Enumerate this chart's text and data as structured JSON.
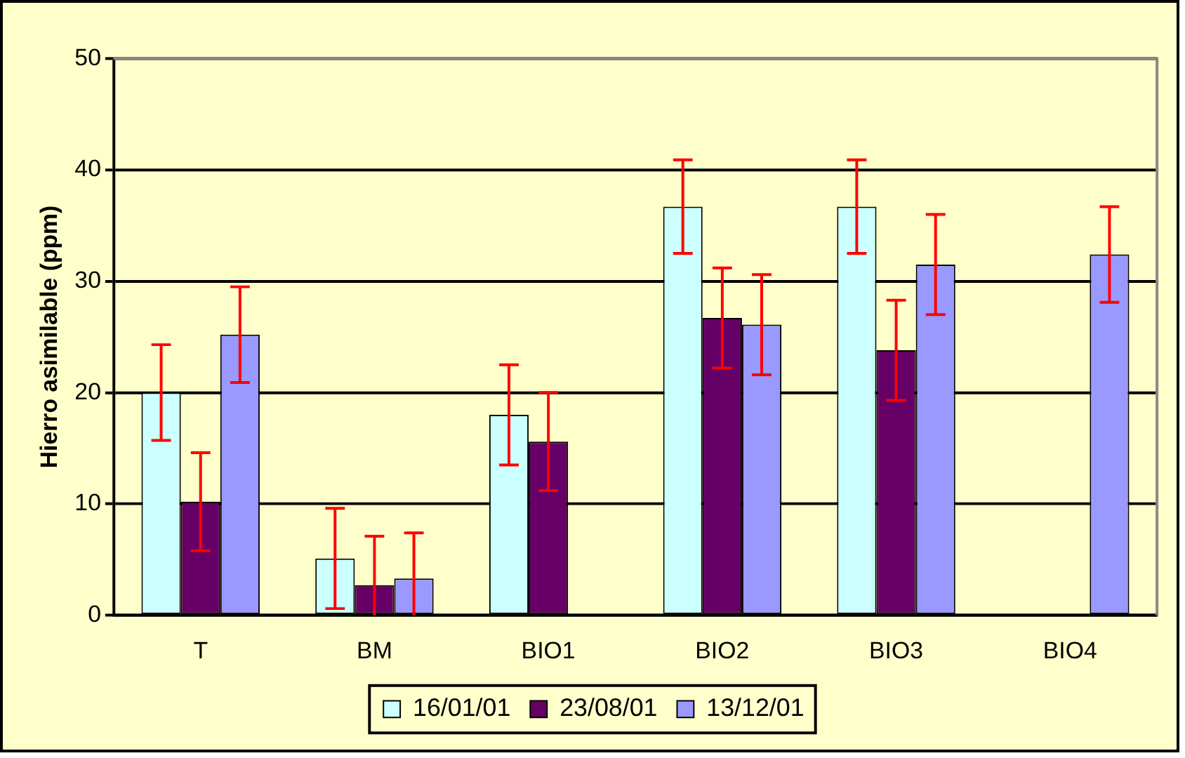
{
  "chart_data": {
    "type": "bar",
    "ylabel": "Hierro asimilable (ppm)",
    "categories": [
      "T",
      "BM",
      "BIO1",
      "BIO2",
      "BIO3",
      "BIO4"
    ],
    "series": [
      {
        "name": "16/01/01",
        "color": "#ccffff",
        "values": [
          20,
          5.1,
          18,
          36.7,
          36.7,
          null
        ],
        "errors": [
          4.3,
          4.5,
          4.5,
          4.2,
          4.2,
          null
        ]
      },
      {
        "name": "23/08/01",
        "color": "#660066",
        "values": [
          10.2,
          2.7,
          15.6,
          26.7,
          23.8,
          null
        ],
        "errors": [
          4.4,
          [
            0,
            7.1
          ],
          4.4,
          4.5,
          4.5,
          null
        ]
      },
      {
        "name": "13/12/01",
        "color": "#9999ff",
        "values": [
          25.2,
          3.3,
          null,
          26.1,
          31.5,
          32.4
        ],
        "errors": [
          4.3,
          [
            0,
            7.4
          ],
          null,
          4.5,
          4.5,
          4.3
        ]
      }
    ],
    "ylim": [
      0,
      50
    ],
    "yticks": [
      0,
      10,
      20,
      30,
      40,
      50
    ],
    "grid": "y",
    "legend": "bottom"
  }
}
